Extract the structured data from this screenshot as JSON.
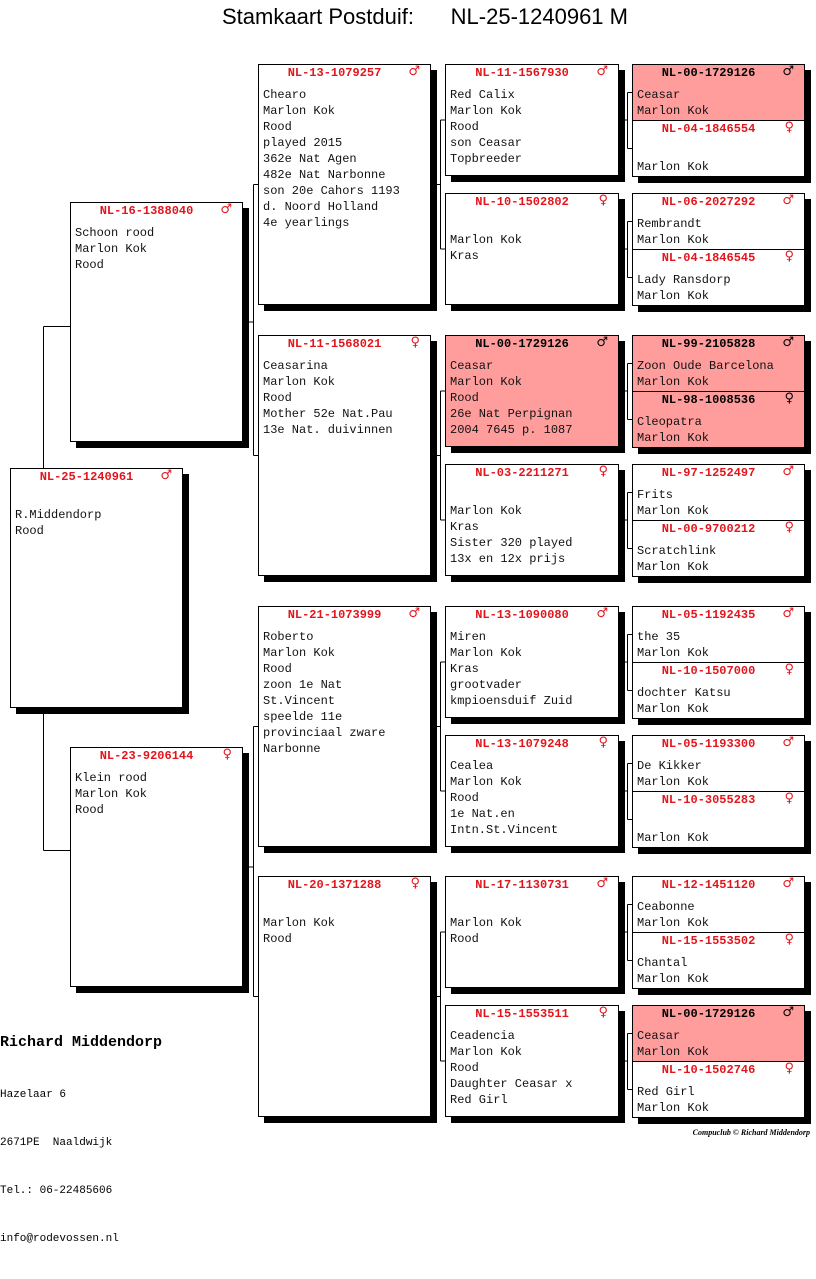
{
  "title": "Stamkaart Postduif:      NL-25-1240961 M",
  "colors": {
    "ring": "#e3151c",
    "highlight": "#ff9d9d",
    "shadow": "#000000"
  },
  "pedigree": [
    {
      "ring": "NL-25-1240961",
      "sex": "♂",
      "sex_icon": "male-icon",
      "highlight": false,
      "lines": [
        "",
        "R.Middendorp",
        "Rood"
      ]
    },
    {
      "ring": "NL-16-1388040",
      "sex": "♂",
      "sex_icon": "male-icon",
      "highlight": false,
      "lines": [
        "Schoon rood",
        "Marlon Kok",
        "Rood"
      ]
    },
    {
      "ring": "NL-23-9206144",
      "sex": "♀",
      "sex_icon": "female-icon",
      "highlight": false,
      "lines": [
        "Klein rood",
        "Marlon Kok",
        "Rood"
      ]
    },
    {
      "ring": "NL-13-1079257",
      "sex": "♂",
      "sex_icon": "male-icon",
      "highlight": false,
      "lines": [
        "Chearo",
        "Marlon Kok",
        "Rood",
        "played 2015",
        "362e Nat Agen",
        "482e Nat Narbonne",
        "son 20e Cahors 1193",
        "d. Noord Holland",
        "4e yearlings"
      ]
    },
    {
      "ring": "NL-11-1568021",
      "sex": "♀",
      "sex_icon": "female-icon",
      "highlight": false,
      "lines": [
        "Ceasarina",
        "Marlon Kok",
        "Rood",
        "Mother 52e Nat.Pau",
        "13e Nat. duivinnen"
      ]
    },
    {
      "ring": "NL-21-1073999",
      "sex": "♂",
      "sex_icon": "male-icon",
      "highlight": false,
      "lines": [
        "Roberto",
        "Marlon Kok",
        "Rood",
        "zoon 1e Nat",
        "St.Vincent",
        "speelde 11e",
        "provinciaal zware",
        "Narbonne"
      ]
    },
    {
      "ring": "NL-20-1371288",
      "sex": "♀",
      "sex_icon": "female-icon",
      "highlight": false,
      "lines": [
        "",
        "Marlon Kok",
        "Rood"
      ]
    },
    {
      "ring": "NL-11-1567930",
      "sex": "♂",
      "sex_icon": "male-icon",
      "highlight": false,
      "lines": [
        "Red Calix",
        "Marlon Kok",
        "Rood",
        "son Ceasar",
        "Topbreeder"
      ]
    },
    {
      "ring": "NL-10-1502802",
      "sex": "♀",
      "sex_icon": "female-icon",
      "highlight": false,
      "lines": [
        "",
        "Marlon Kok",
        "Kras"
      ]
    },
    {
      "ring": "NL-00-1729126",
      "sex": "♂",
      "sex_icon": "male-icon",
      "highlight": true,
      "lines": [
        "Ceasar",
        "Marlon Kok",
        "Rood",
        "26e Nat Perpignan",
        "2004 7645 p. 1087"
      ]
    },
    {
      "ring": "NL-03-2211271",
      "sex": "♀",
      "sex_icon": "female-icon",
      "highlight": false,
      "lines": [
        "",
        "Marlon Kok",
        "Kras",
        "Sister 320 played",
        "13x en 12x prijs"
      ]
    },
    {
      "ring": "NL-13-1090080",
      "sex": "♂",
      "sex_icon": "male-icon",
      "highlight": false,
      "lines": [
        "Miren",
        "Marlon Kok",
        "Kras",
        "grootvader",
        "kmpioensduif Zuid"
      ]
    },
    {
      "ring": "NL-13-1079248",
      "sex": "♀",
      "sex_icon": "female-icon",
      "highlight": false,
      "lines": [
        "Cealea",
        "Marlon Kok",
        "Rood",
        "1e Nat.en",
        "Intn.St.Vincent"
      ]
    },
    {
      "ring": "NL-17-1130731",
      "sex": "♂",
      "sex_icon": "male-icon",
      "highlight": false,
      "lines": [
        "",
        "Marlon Kok",
        "Rood"
      ]
    },
    {
      "ring": "NL-15-1553511",
      "sex": "♀",
      "sex_icon": "female-icon",
      "highlight": false,
      "lines": [
        "Ceadencia",
        "Marlon Kok",
        "Rood",
        "Daughter Ceasar x",
        "Red Girl"
      ]
    },
    {
      "ring": "NL-00-1729126",
      "sex": "♂",
      "sex_icon": "male-icon",
      "highlight": true,
      "lines": [
        "Ceasar",
        "Marlon Kok"
      ]
    },
    {
      "ring": "NL-04-1846554",
      "sex": "♀",
      "sex_icon": "female-icon",
      "highlight": false,
      "lines": [
        "",
        "Marlon Kok"
      ]
    },
    {
      "ring": "NL-06-2027292",
      "sex": "♂",
      "sex_icon": "male-icon",
      "highlight": false,
      "lines": [
        "Rembrandt",
        "Marlon Kok"
      ]
    },
    {
      "ring": "NL-04-1846545",
      "sex": "♀",
      "sex_icon": "female-icon",
      "highlight": false,
      "lines": [
        "Lady Ransdorp",
        "Marlon Kok"
      ]
    },
    {
      "ring": "NL-99-2105828",
      "sex": "♂",
      "sex_icon": "male-icon",
      "highlight": true,
      "lines": [
        "Zoon Oude Barcelona",
        "Marlon Kok"
      ]
    },
    {
      "ring": "NL-98-1008536",
      "sex": "♀",
      "sex_icon": "female-icon",
      "highlight": true,
      "lines": [
        "Cleopatra",
        "Marlon Kok"
      ]
    },
    {
      "ring": "NL-97-1252497",
      "sex": "♂",
      "sex_icon": "male-icon",
      "highlight": false,
      "lines": [
        "Frits",
        "Marlon Kok"
      ]
    },
    {
      "ring": "NL-00-9700212",
      "sex": "♀",
      "sex_icon": "female-icon",
      "highlight": false,
      "lines": [
        "Scratchlink",
        "Marlon Kok"
      ]
    },
    {
      "ring": "NL-05-1192435",
      "sex": "♂",
      "sex_icon": "male-icon",
      "highlight": false,
      "lines": [
        "the 35",
        "Marlon Kok"
      ]
    },
    {
      "ring": "NL-10-1507000",
      "sex": "♀",
      "sex_icon": "female-icon",
      "highlight": false,
      "lines": [
        "dochter Katsu",
        "Marlon Kok"
      ]
    },
    {
      "ring": "NL-05-1193300",
      "sex": "♂",
      "sex_icon": "male-icon",
      "highlight": false,
      "lines": [
        "De Kikker",
        "Marlon Kok"
      ]
    },
    {
      "ring": "NL-10-3055283",
      "sex": "♀",
      "sex_icon": "female-icon",
      "highlight": false,
      "lines": [
        "",
        "Marlon Kok"
      ]
    },
    {
      "ring": "NL-12-1451120",
      "sex": "♂",
      "sex_icon": "male-icon",
      "highlight": false,
      "lines": [
        "Ceabonne",
        "Marlon Kok"
      ]
    },
    {
      "ring": "NL-15-1553502",
      "sex": "♀",
      "sex_icon": "female-icon",
      "highlight": false,
      "lines": [
        "Chantal",
        "Marlon Kok"
      ]
    },
    {
      "ring": "NL-00-1729126",
      "sex": "♂",
      "sex_icon": "male-icon",
      "highlight": true,
      "lines": [
        "Ceasar",
        "Marlon Kok"
      ]
    },
    {
      "ring": "NL-10-1502746",
      "sex": "♀",
      "sex_icon": "female-icon",
      "highlight": false,
      "lines": [
        "Red Girl",
        "Marlon Kok"
      ]
    }
  ],
  "breeder": {
    "name": "Richard Middendorp",
    "address": "Hazelaar 6",
    "city": "2671PE  Naaldwijk",
    "phone": "Tel.: 06-22485606",
    "email": "info@rodevossen.nl"
  },
  "credit": "Compuclub © Richard Middendorp"
}
